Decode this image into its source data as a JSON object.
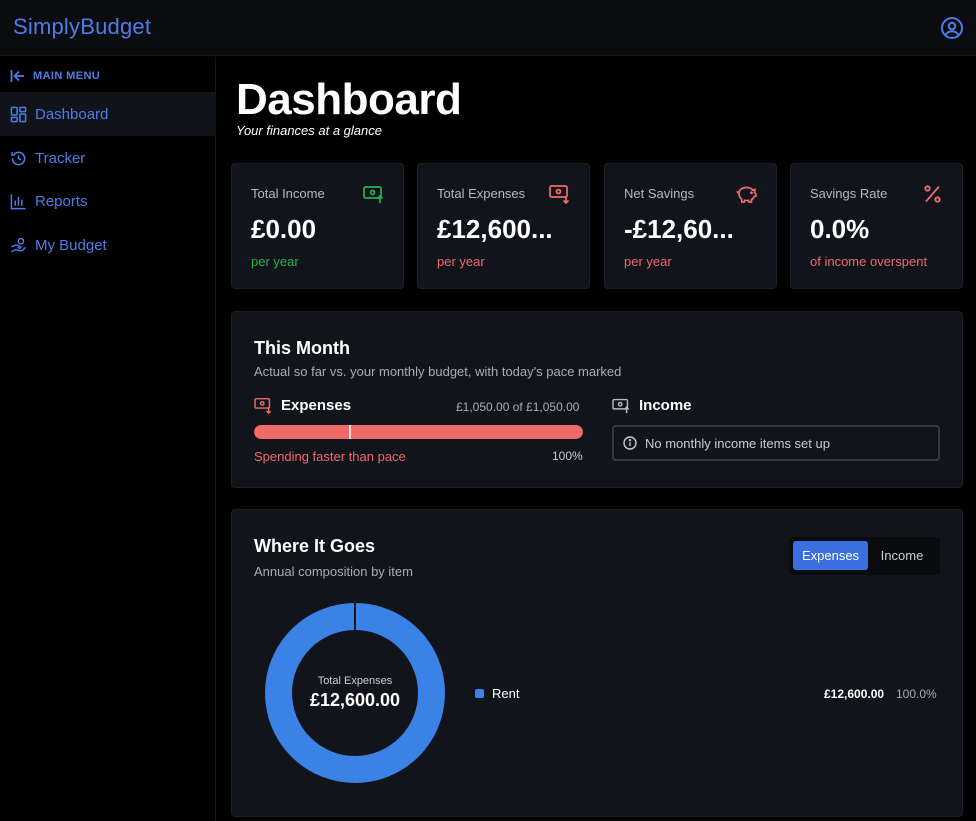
{
  "app": {
    "brand": "SimplyBudget"
  },
  "sidebar": {
    "menu_label": "MAIN MENU",
    "items": [
      {
        "label": "Dashboard",
        "icon": "dashboard-icon",
        "active": true
      },
      {
        "label": "Tracker",
        "icon": "history-icon",
        "active": false
      },
      {
        "label": "Reports",
        "icon": "bar-chart-icon",
        "active": false
      },
      {
        "label": "My Budget",
        "icon": "hand-coins-icon",
        "active": false
      }
    ]
  },
  "page": {
    "title": "Dashboard",
    "subtitle": "Your finances at a glance"
  },
  "stats": [
    {
      "title": "Total Income",
      "value": "£0.00",
      "note": "per year",
      "icon": "money-in-icon",
      "color": "#24b04a"
    },
    {
      "title": "Total Expenses",
      "value": "£12,600...",
      "note": "per year",
      "icon": "money-out-icon",
      "color": "#f06a6a"
    },
    {
      "title": "Net Savings",
      "value": "-£12,60...",
      "note": "per year",
      "icon": "piggy-bank-icon",
      "color": "#f06a6a"
    },
    {
      "title": "Savings Rate",
      "value": "0.0%",
      "note": "of income overspent",
      "icon": "percent-icon",
      "color": "#f06a6a"
    }
  ],
  "this_month": {
    "title": "This Month",
    "subtitle": "Actual so far vs. your monthly budget, with today's pace marked",
    "expenses": {
      "label": "Expenses",
      "amount_text": "£1,050.00 of £1,050.00",
      "progress": 1.0,
      "pace": 0.29,
      "status": "Spending faster than pace",
      "percent_text": "100%"
    },
    "income": {
      "label": "Income",
      "message": "No monthly income items set up"
    }
  },
  "where_it_goes": {
    "title": "Where It Goes",
    "subtitle": "Annual composition by item",
    "tabs": {
      "expenses": "Expenses",
      "income": "Income",
      "selected": "Expenses"
    },
    "center_label": "Total Expenses",
    "center_value": "£12,600.00",
    "items": [
      {
        "name": "Rent",
        "amount": "£12,600.00",
        "percent": "100.0%",
        "share": 1.0,
        "color": "#3b82e6"
      }
    ]
  },
  "colors": {
    "accent": "#4d7de8",
    "positive": "#24b04a",
    "negative": "#f06a6a",
    "donut": "#3b82e6"
  }
}
